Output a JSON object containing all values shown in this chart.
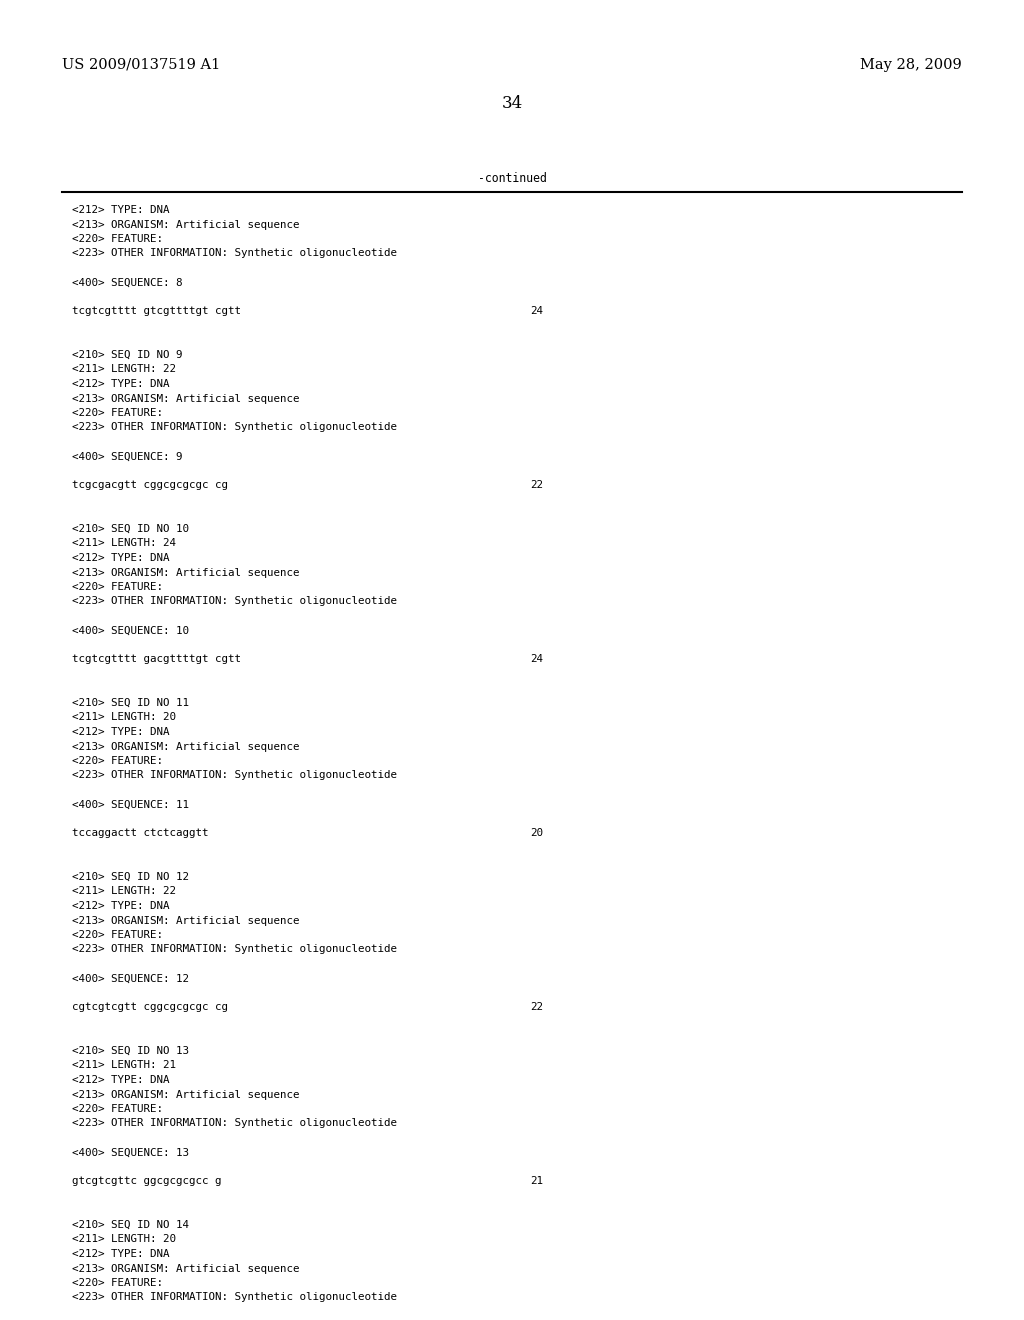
{
  "header_left": "US 2009/0137519 A1",
  "header_right": "May 28, 2009",
  "page_number": "34",
  "continued_label": "-continued",
  "background_color": "#ffffff",
  "text_color": "#000000",
  "header_fontsize": 10.5,
  "mono_fontsize": 7.8,
  "page_num_fontsize": 12,
  "content_lines": [
    "<212> TYPE: DNA",
    "<213> ORGANISM: Artificial sequence",
    "<220> FEATURE:",
    "<223> OTHER INFORMATION: Synthetic oligonucleotide",
    "",
    "<400> SEQUENCE: 8",
    "",
    "tcgtcgtttt gtcgttttgt cgtt|24",
    "",
    "",
    "<210> SEQ ID NO 9",
    "<211> LENGTH: 22",
    "<212> TYPE: DNA",
    "<213> ORGANISM: Artificial sequence",
    "<220> FEATURE:",
    "<223> OTHER INFORMATION: Synthetic oligonucleotide",
    "",
    "<400> SEQUENCE: 9",
    "",
    "tcgcgacgtt cggcgcgcgc cg|22",
    "",
    "",
    "<210> SEQ ID NO 10",
    "<211> LENGTH: 24",
    "<212> TYPE: DNA",
    "<213> ORGANISM: Artificial sequence",
    "<220> FEATURE:",
    "<223> OTHER INFORMATION: Synthetic oligonucleotide",
    "",
    "<400> SEQUENCE: 10",
    "",
    "tcgtcgtttt gacgttttgt cgtt|24",
    "",
    "",
    "<210> SEQ ID NO 11",
    "<211> LENGTH: 20",
    "<212> TYPE: DNA",
    "<213> ORGANISM: Artificial sequence",
    "<220> FEATURE:",
    "<223> OTHER INFORMATION: Synthetic oligonucleotide",
    "",
    "<400> SEQUENCE: 11",
    "",
    "tccaggactt ctctcaggtt|20",
    "",
    "",
    "<210> SEQ ID NO 12",
    "<211> LENGTH: 22",
    "<212> TYPE: DNA",
    "<213> ORGANISM: Artificial sequence",
    "<220> FEATURE:",
    "<223> OTHER INFORMATION: Synthetic oligonucleotide",
    "",
    "<400> SEQUENCE: 12",
    "",
    "cgtcgtcgtt cggcgcgcgc cg|22",
    "",
    "",
    "<210> SEQ ID NO 13",
    "<211> LENGTH: 21",
    "<212> TYPE: DNA",
    "<213> ORGANISM: Artificial sequence",
    "<220> FEATURE:",
    "<223> OTHER INFORMATION: Synthetic oligonucleotide",
    "",
    "<400> SEQUENCE: 13",
    "",
    "gtcgtcgttc ggcgcgcgcc g|21",
    "",
    "",
    "<210> SEQ ID NO 14",
    "<211> LENGTH: 20",
    "<212> TYPE: DNA",
    "<213> ORGANISM: Artificial sequence",
    "<220> FEATURE:",
    "<223> OTHER INFORMATION: Synthetic oligonucleotide"
  ]
}
